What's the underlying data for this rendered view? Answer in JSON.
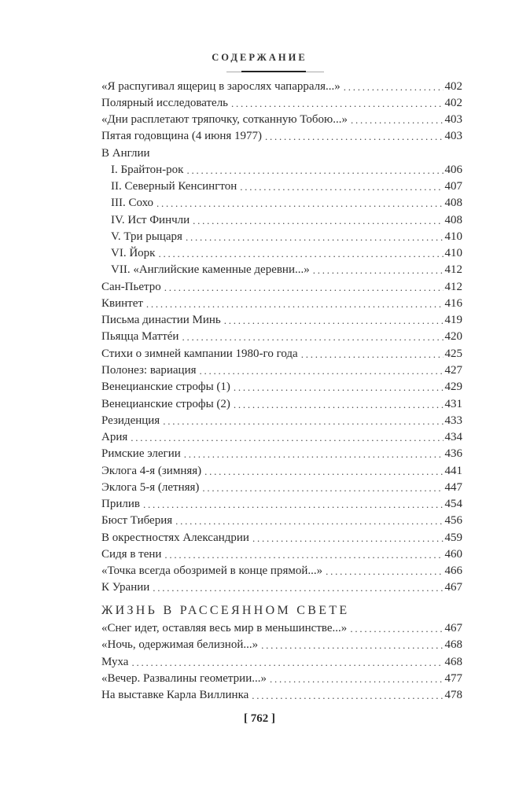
{
  "header": {
    "title": "СОДЕРЖАНИЕ"
  },
  "entries": [
    {
      "title": "«Я распугивал ящериц в зарослях чапарраля...»",
      "page": "402"
    },
    {
      "title": "Полярный исследователь",
      "page": "402"
    },
    {
      "title": "«Дни расплетают тряпочку, сотканную Тобою...»",
      "page": "403"
    },
    {
      "title": "Пятая годовщина (4 июня 1977)",
      "page": "403"
    },
    {
      "title": "В Англии",
      "page": ""
    },
    {
      "title": "I. Брайтон-рок",
      "page": "406",
      "sub": true
    },
    {
      "title": "II. Северный Кенсингтон",
      "page": "407",
      "sub": true
    },
    {
      "title": "III. Сохо",
      "page": "408",
      "sub": true
    },
    {
      "title": "IV. Ист Финчли",
      "page": "408",
      "sub": true
    },
    {
      "title": "V. Три рыцаря",
      "page": "410",
      "sub": true
    },
    {
      "title": "VI. Йорк",
      "page": "410",
      "sub": true
    },
    {
      "title": "VII. «Английские каменные деревни...»",
      "page": "412",
      "sub": true
    },
    {
      "title": "Сан-Пьетро",
      "page": "412"
    },
    {
      "title": "Квинтет",
      "page": "416"
    },
    {
      "title": "Письма династии Минь",
      "page": "419"
    },
    {
      "title": "Пьяцца Маттéи",
      "page": "420"
    },
    {
      "title": "Стихи о зимней кампании 1980-го года",
      "page": "425"
    },
    {
      "title": "Полонез: вариация",
      "page": "427"
    },
    {
      "title": "Венецианские строфы (1)",
      "page": "429"
    },
    {
      "title": "Венецианские строфы (2)",
      "page": "431"
    },
    {
      "title": "Резиденция",
      "page": "433"
    },
    {
      "title": "Ария",
      "page": "434"
    },
    {
      "title": "Римские элегии",
      "page": "436"
    },
    {
      "title": "Эклога 4-я (зимняя)",
      "page": "441"
    },
    {
      "title": "Эклога 5-я (летняя)",
      "page": "447"
    },
    {
      "title": "Прилив",
      "page": "454"
    },
    {
      "title": "Бюст Тиберия",
      "page": "456"
    },
    {
      "title": "В окрестностях Александрии",
      "page": "459"
    },
    {
      "title": "Сидя в тени",
      "page": "460"
    },
    {
      "title": "«Точка всегда обозримей в конце прямой...»",
      "page": "466"
    },
    {
      "title": "К Урании",
      "page": "467"
    }
  ],
  "section": {
    "title": "ЖИЗНЬ В РАССЕЯННОМ СВЕТЕ",
    "entries": [
      {
        "title": "«Снег идет, оставляя весь мир в меньшинстве...»",
        "page": "467"
      },
      {
        "title": "«Ночь, одержимая белизной...»",
        "page": "468"
      },
      {
        "title": "Муха",
        "page": "468"
      },
      {
        "title": "«Вечер. Развалины геометрии...»",
        "page": "477"
      },
      {
        "title": "На выставке Карла Виллинка",
        "page": "478"
      }
    ]
  },
  "footer": {
    "page_number": "[ 762 ]"
  }
}
